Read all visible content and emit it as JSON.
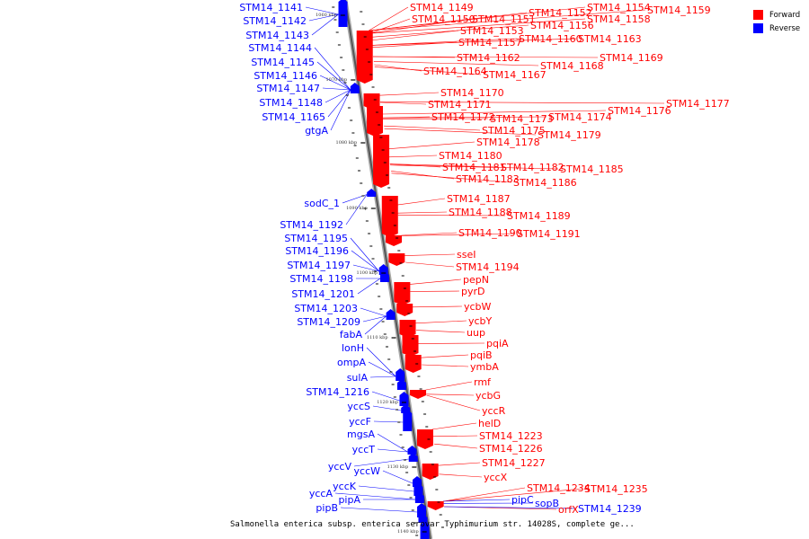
{
  "legend": {
    "forward": "Forward",
    "reverse": "Reverse",
    "forward_color": "#ff0000",
    "reverse_color": "#0000ff"
  },
  "caption": "Salmonella enterica subsp. enterica serovar Typhimurium str. 14028S, complete ge...",
  "ticks": [
    "1060 kbp",
    "1070 kbp",
    "1080 kbp",
    "1090 kbp",
    "1100 kbp",
    "1110 kbp",
    "1120 kbp",
    "1130 kbp",
    "1140 kbp"
  ],
  "left_labels": [
    "STM14_1141",
    "STM14_1142",
    "STM14_1143",
    "STM14_1144",
    "STM14_1145",
    "STM14_1146",
    "STM14_1147",
    "STM14_1148",
    "STM14_1165",
    "gtgA",
    "sodC_1",
    "STM14_1192",
    "STM14_1195",
    "STM14_1196",
    "STM14_1197",
    "STM14_1198",
    "STM14_1201",
    "STM14_1203",
    "STM14_1209",
    "fabA",
    "lonH",
    "ompA",
    "sulA",
    "STM14_1216",
    "yccS",
    "yccF",
    "mgsA",
    "yccT",
    "yccV",
    "yccW",
    "yccK",
    "yccA",
    "pipA",
    "pipB"
  ],
  "right_labels": [
    "STM14_1149",
    "STM14_1150",
    "STM14_1151",
    "STM14_1152",
    "STM14_1154",
    "STM14_1158",
    "STM14_1159",
    "STM14_1153",
    "STM14_1156",
    "STM14_1157",
    "STM14_1160",
    "STM14_1163",
    "STM14_1162",
    "STM14_1168",
    "STM14_1169",
    "STM14_1164",
    "STM14_1167",
    "STM14_1170",
    "STM14_1171",
    "STM14_1177",
    "STM14_1176",
    "STM14_1172",
    "STM14_1173",
    "STM14_1174",
    "STM14_1175",
    "STM14_1179",
    "STM14_1178",
    "STM14_1180",
    "STM14_1181",
    "STM14_1182",
    "STM14_1185",
    "STM14_1183",
    "STM14_1186",
    "STM14_1187",
    "STM14_1188",
    "STM14_1189",
    "STM14_1190",
    "STM14_1191",
    "sseI",
    "STM14_1194",
    "pepN",
    "pyrD",
    "ycbW",
    "ycbY",
    "uup",
    "pqiA",
    "pqiB",
    "ymbA",
    "rmf",
    "ycbG",
    "yccR",
    "helD",
    "STM14_1223",
    "STM14_1226",
    "STM14_1227",
    "yccX",
    "STM14_1234",
    "STM14_1235",
    "pipC",
    "sopB",
    "orfX",
    "STM14_1239"
  ]
}
